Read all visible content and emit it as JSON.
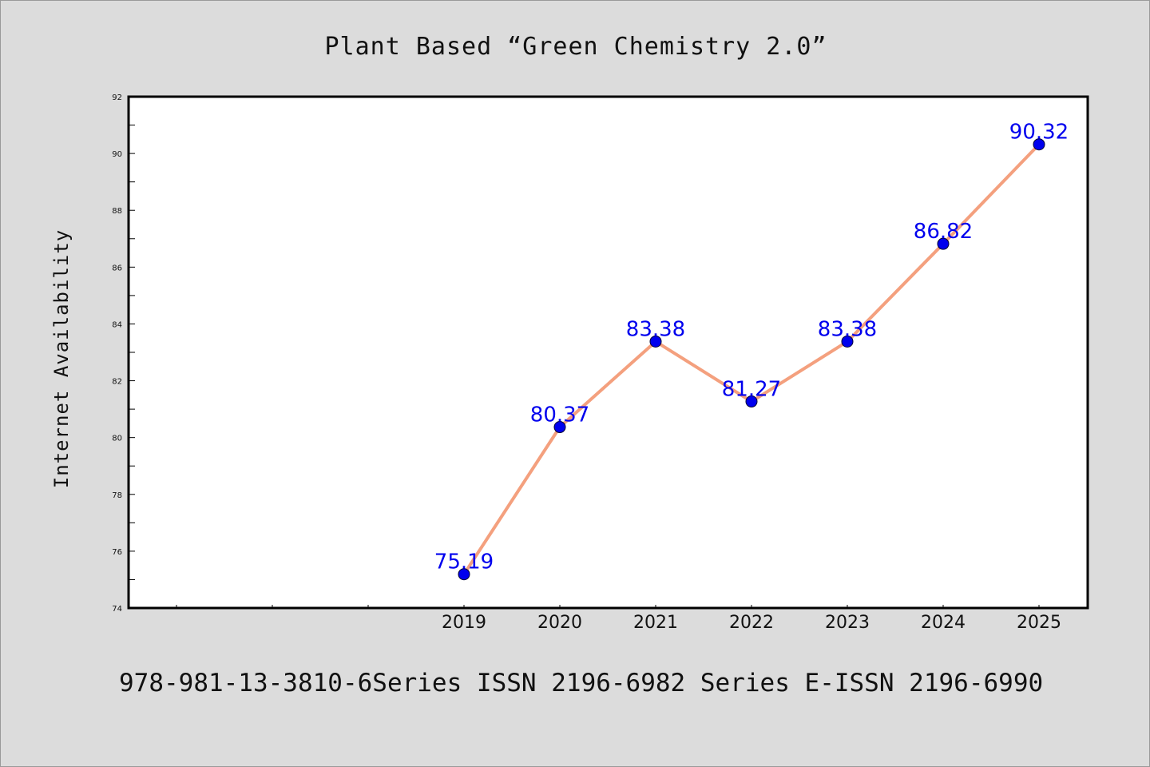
{
  "colors": {
    "background": "#dcdcdc",
    "plot_background": "#ffffff",
    "line": "#f4a07e",
    "marker": "#0000ee",
    "data_label": "#0000ee"
  },
  "chart_data": {
    "type": "line",
    "title": "Plant Based  “Green Chemistry 2.0”",
    "xlabel": "",
    "ylabel": "Internet Availability",
    "categories": [
      "2019",
      "2020",
      "2021",
      "2022",
      "2023",
      "2024",
      "2025"
    ],
    "series": [
      {
        "values": [
          75.19,
          80.37,
          83.38,
          81.27,
          83.38,
          86.82,
          90.32
        ],
        "data_labels": [
          "75.19",
          "80.37",
          "83.38",
          "81.27",
          "83.38",
          "86.82",
          "90.32"
        ]
      }
    ],
    "ylim": [
      74,
      92
    ],
    "yticks": [
      "74",
      "76",
      "78",
      "80",
      "82",
      "84",
      "86",
      "88",
      "90",
      "92"
    ],
    "grid": false,
    "legend": "none"
  },
  "footer": {
    "text": "978-981-13-3810-6Series ISSN 2196-6982 Series E-ISSN 2196-6990"
  }
}
